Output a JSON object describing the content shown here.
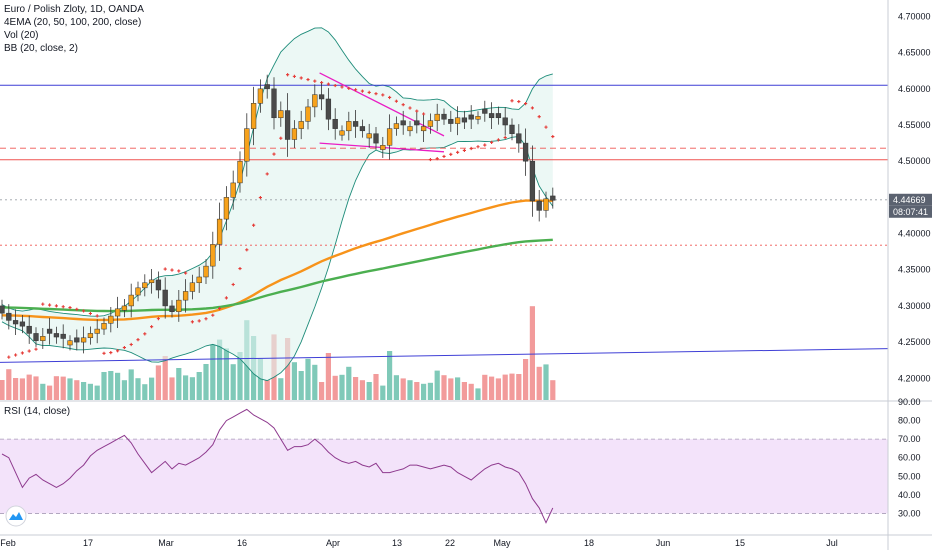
{
  "legend": {
    "title": "Euro / Polish Zloty, 1D, OANDA",
    "ema": "4EMA (20, 50, 100, 200, close)",
    "vol": "Vol (20)",
    "bb": "BB (20, close, 2)",
    "rsi": "RSI (14, close)"
  },
  "tags": {
    "last_price": "4.44669",
    "countdown": "08:07:41"
  },
  "colors": {
    "up": "#f7a21b",
    "down": "#4a4a4a",
    "ema100": "#f7931a",
    "ema200": "#4caf50",
    "bb_band": "#1e8c7a",
    "psar": "#e53935",
    "wedge": "#e91ec4",
    "hline_blue": "#3f3fd6",
    "hline_red": "#ef5350",
    "vol_up": "#7fc9b8",
    "vol_down": "#f29b9b",
    "rsi_line": "#8e3a8e",
    "rsi_fill": "#f3e3fa"
  },
  "chart_data": {
    "type": "candlestick",
    "price_axis": {
      "range": [
        4.17,
        4.72
      ],
      "ticks": [
        "4.70000",
        "4.65000",
        "4.60000",
        "4.55000",
        "4.50000",
        "4.45000",
        "4.40000",
        "4.35000",
        "4.30000",
        "4.25000",
        "4.20000"
      ]
    },
    "rsi_axis": {
      "range": [
        20,
        90
      ],
      "ticks": [
        "90.00",
        "80.00",
        "70.00",
        "60.00",
        "50.00",
        "40.00",
        "30.00"
      ]
    },
    "x_ticks": [
      "Feb",
      "17",
      "Mar",
      "16",
      "Apr",
      "13",
      "22",
      "May",
      "18",
      "Jun",
      "15",
      "Jul"
    ],
    "horizontal_levels": [
      {
        "value": 4.605,
        "style": "solid",
        "color": "blue"
      },
      {
        "value": 4.518,
        "style": "dashed",
        "color": "red"
      },
      {
        "value": 4.502,
        "style": "solid",
        "color": "red"
      },
      {
        "value": 4.384,
        "style": "dotted",
        "color": "red"
      },
      {
        "value": 4.4467,
        "style": "dotted",
        "color": "gray"
      }
    ]
  }
}
